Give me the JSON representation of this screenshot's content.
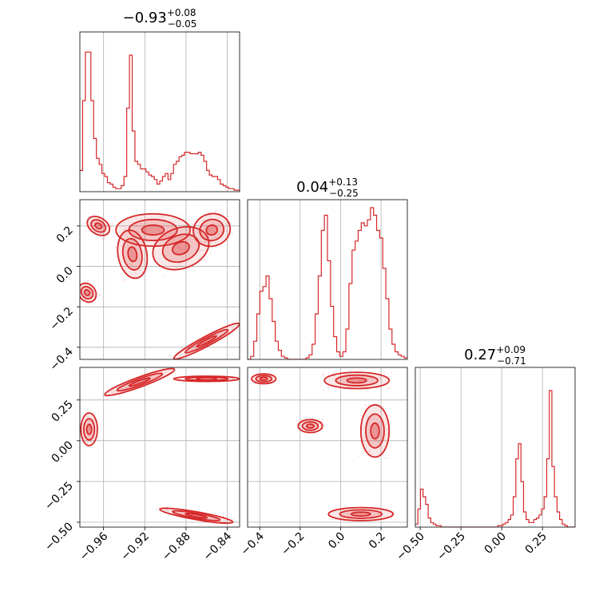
{
  "chart_data": {
    "type": "corner",
    "color": "#d62728",
    "parameters": [
      {
        "title": {
          "median": "−0.93",
          "plus": "+0.08",
          "minus": "−0.05"
        },
        "range": [
          -0.983,
          -0.828
        ],
        "ticks": [
          -0.96,
          -0.92,
          -0.88,
          -0.84
        ],
        "tick_labels": [
          "−0.96",
          "−0.92",
          "−0.88",
          "−0.84"
        ]
      },
      {
        "title": {
          "median": "0.04",
          "plus": "+0.13",
          "minus": "−0.25"
        },
        "range": [
          -0.46,
          0.33
        ],
        "ticks": [
          -0.4,
          -0.2,
          0.0,
          0.2
        ],
        "tick_labels": [
          "−0.4",
          "−0.2",
          "0.0",
          "0.2"
        ]
      },
      {
        "title": {
          "median": "0.27",
          "plus": "+0.09",
          "minus": "−0.71"
        },
        "range": [
          -0.53,
          0.45
        ],
        "ticks": [
          -0.5,
          -0.25,
          0.0,
          0.25
        ],
        "tick_labels": [
          "−0.50",
          "−0.25",
          "0.00",
          "0.25"
        ]
      }
    ],
    "histograms": [
      {
        "parameter": 0,
        "bin_range": [
          -0.983,
          -0.828
        ],
        "counts": [
          0.14,
          0.6,
          0.92,
          0.92,
          0.6,
          0.35,
          0.22,
          0.18,
          0.12,
          0.1,
          0.06,
          0.05,
          0.03,
          0.02,
          0.02,
          0.04,
          0.1,
          0.55,
          0.9,
          0.4,
          0.2,
          0.18,
          0.15,
          0.15,
          0.13,
          0.11,
          0.1,
          0.08,
          0.05,
          0.07,
          0.1,
          0.12,
          0.08,
          0.12,
          0.18,
          0.2,
          0.23,
          0.24,
          0.26,
          0.26,
          0.25,
          0.25,
          0.25,
          0.26,
          0.24,
          0.2,
          0.14,
          0.11,
          0.1,
          0.1,
          0.08,
          0.05,
          0.04,
          0.03,
          0.02,
          0.02,
          0.01,
          0.01
        ]
      },
      {
        "parameter": 1,
        "bin_range": [
          -0.46,
          0.33
        ],
        "counts": [
          0.0,
          0.02,
          0.12,
          0.3,
          0.45,
          0.48,
          0.55,
          0.4,
          0.25,
          0.12,
          0.06,
          0.02,
          0.01,
          0.0,
          0.0,
          0.0,
          0.0,
          0.0,
          0.0,
          0.01,
          0.03,
          0.1,
          0.3,
          0.55,
          0.85,
          0.95,
          0.65,
          0.35,
          0.15,
          0.05,
          0.02,
          0.05,
          0.2,
          0.5,
          0.72,
          0.78,
          0.85,
          0.9,
          0.88,
          0.92,
          1.0,
          0.95,
          0.85,
          0.8,
          0.6,
          0.4,
          0.2,
          0.1,
          0.05,
          0.03,
          0.02,
          0.01
        ]
      },
      {
        "parameter": 2,
        "bin_range": [
          -0.53,
          0.45
        ],
        "counts": [
          0.02,
          0.12,
          0.25,
          0.2,
          0.15,
          0.06,
          0.03,
          0.02,
          0.01,
          0.01,
          0.0,
          0.0,
          0.0,
          0.0,
          0.0,
          0.0,
          0.0,
          0.0,
          0.0,
          0.0,
          0.0,
          0.0,
          0.0,
          0.0,
          0.0,
          0.0,
          0.0,
          0.0,
          0.0,
          0.0,
          0.0,
          0.0,
          0.01,
          0.01,
          0.02,
          0.03,
          0.05,
          0.08,
          0.2,
          0.45,
          0.55,
          0.3,
          0.1,
          0.05,
          0.03,
          0.03,
          0.05,
          0.06,
          0.08,
          0.12,
          0.2,
          0.45,
          0.9,
          0.4,
          0.2,
          0.1,
          0.05,
          0.02,
          0.01,
          0.0,
          0.0,
          0.0
        ]
      }
    ],
    "pair_clusters": [
      {
        "x_param": 0,
        "y_param": 1,
        "clusters": [
          {
            "cx": -0.965,
            "cy": 0.2,
            "sx": 0.004,
            "sy": 0.03,
            "angle": -58
          },
          {
            "cx": -0.932,
            "cy": 0.06,
            "sx": 0.007,
            "sy": 0.06,
            "angle": -10
          },
          {
            "cx": -0.912,
            "cy": 0.18,
            "sx": 0.018,
            "sy": 0.04,
            "angle": 0
          },
          {
            "cx": -0.885,
            "cy": 0.09,
            "sx": 0.014,
            "sy": 0.05,
            "angle": -20
          },
          {
            "cx": -0.855,
            "cy": 0.18,
            "sx": 0.009,
            "sy": 0.04,
            "angle": -15
          },
          {
            "cx": -0.976,
            "cy": -0.13,
            "sx": 0.004,
            "sy": 0.025,
            "angle": -40
          },
          {
            "cx": -0.86,
            "cy": -0.37,
            "sx": 0.018,
            "sy": 0.012,
            "angle": -28
          }
        ]
      },
      {
        "x_param": 0,
        "y_param": 2,
        "clusters": [
          {
            "cx": -0.974,
            "cy": 0.07,
            "sx": 0.004,
            "sy": 0.05,
            "angle": 0
          },
          {
            "cx": -0.925,
            "cy": 0.36,
            "sx": 0.018,
            "sy": 0.015,
            "angle": -20
          },
          {
            "cx": -0.86,
            "cy": 0.38,
            "sx": 0.016,
            "sy": 0.008,
            "angle": 0
          },
          {
            "cx": -0.87,
            "cy": -0.46,
            "sx": 0.018,
            "sy": 0.012,
            "angle": 10
          }
        ]
      },
      {
        "x_param": 1,
        "y_param": 2,
        "clusters": [
          {
            "cx": -0.38,
            "cy": 0.38,
            "sx": 0.03,
            "sy": 0.015,
            "angle": 0
          },
          {
            "cx": -0.15,
            "cy": 0.09,
            "sx": 0.03,
            "sy": 0.02,
            "angle": 0
          },
          {
            "cx": 0.08,
            "cy": 0.37,
            "sx": 0.08,
            "sy": 0.025,
            "angle": 0
          },
          {
            "cx": 0.17,
            "cy": 0.06,
            "sx": 0.035,
            "sy": 0.08,
            "angle": 0
          },
          {
            "cx": 0.1,
            "cy": -0.45,
            "sx": 0.08,
            "sy": 0.02,
            "angle": 0
          }
        ]
      }
    ],
    "grid": true
  }
}
